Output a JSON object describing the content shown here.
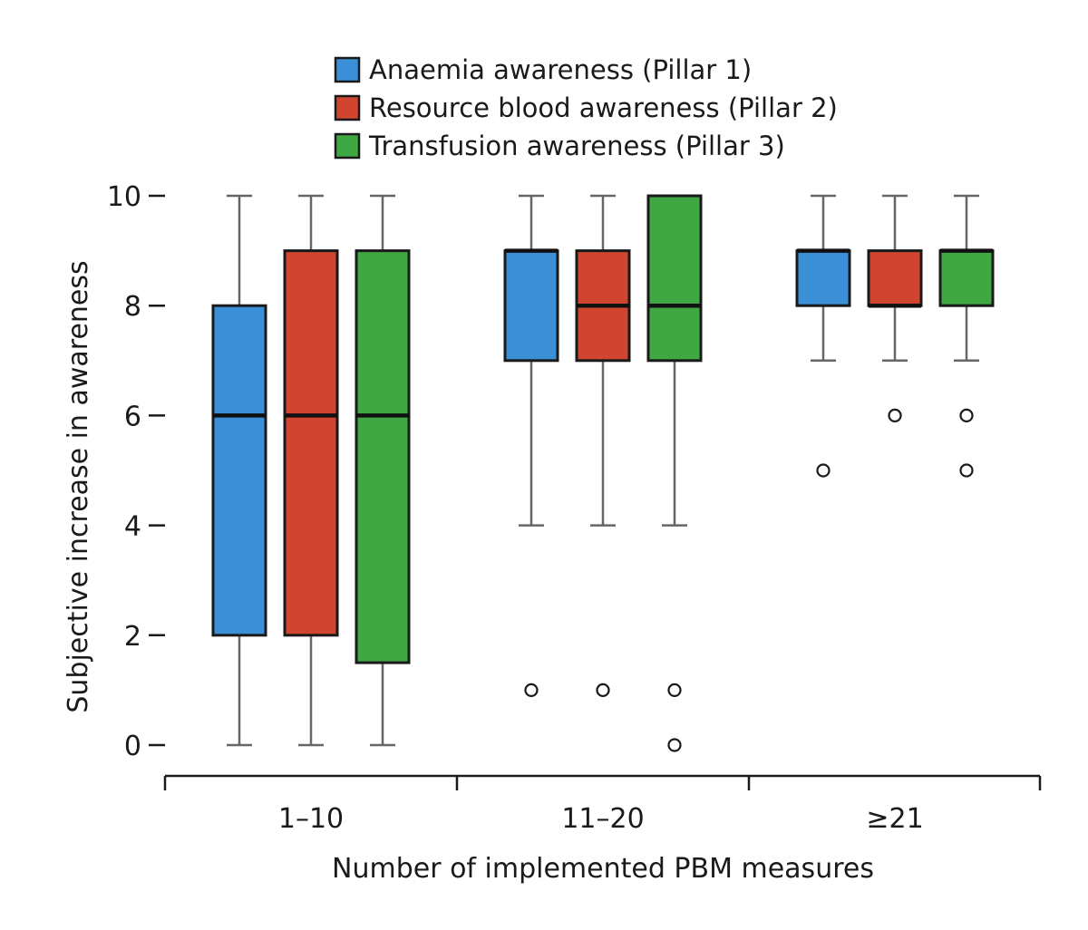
{
  "chart_data": {
    "type": "boxplot",
    "title": "",
    "xlabel": "Number of implemented PBM measures",
    "ylabel": "Subjective increase in awareness",
    "ylim": [
      0,
      10
    ],
    "yticks": [
      "0",
      "2",
      "4",
      "6",
      "8",
      "10"
    ],
    "categories": [
      "1–10",
      "11–20",
      "≥21"
    ],
    "legend_position": "top",
    "grid": false,
    "series": [
      {
        "name": "Anaemia awareness (Pillar 1)",
        "color": "#3a8fd6",
        "boxes": [
          {
            "min": 0,
            "q1": 2,
            "median": 6,
            "q3": 8,
            "max": 10,
            "outliers": []
          },
          {
            "min": 4,
            "q1": 7,
            "median": 9,
            "q3": 9,
            "max": 10,
            "outliers": [
              1
            ]
          },
          {
            "min": 7,
            "q1": 8,
            "median": 9,
            "q3": 9,
            "max": 10,
            "outliers": [
              5
            ]
          }
        ]
      },
      {
        "name": "Resource blood awareness (Pillar 2)",
        "color": "#cf4530",
        "boxes": [
          {
            "min": 0,
            "q1": 2,
            "median": 6,
            "q3": 9,
            "max": 10,
            "outliers": []
          },
          {
            "min": 4,
            "q1": 7,
            "median": 8,
            "q3": 9,
            "max": 10,
            "outliers": [
              1
            ]
          },
          {
            "min": 7,
            "q1": 8,
            "median": 8,
            "q3": 9,
            "max": 10,
            "outliers": [
              6
            ]
          }
        ]
      },
      {
        "name": "Transfusion awareness (Pillar 3)",
        "color": "#3fa843",
        "boxes": [
          {
            "min": 0,
            "q1": 1.5,
            "median": 6,
            "q3": 9,
            "max": 10,
            "outliers": []
          },
          {
            "min": 4,
            "q1": 7,
            "median": 8,
            "q3": 10,
            "max": 10,
            "outliers": [
              1,
              0
            ]
          },
          {
            "min": 7,
            "q1": 8,
            "median": 9,
            "q3": 9,
            "max": 10,
            "outliers": [
              6,
              5
            ]
          }
        ]
      }
    ]
  }
}
